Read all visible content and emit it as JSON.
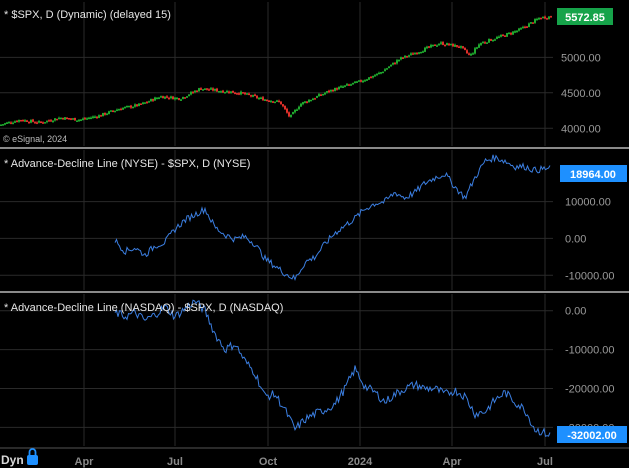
{
  "colors": {
    "background": "#000000",
    "grid": "#2a2a2a",
    "separator": "#8a8a8a",
    "up_candle": "#1faa2e",
    "down_candle": "#e0302a",
    "adl_line": "#3b7ee0",
    "price_badge": "#16a34a",
    "adl_badge": "#1e90ff"
  },
  "footer": {
    "mode_label": "Dyn",
    "lock_icon": "lock-icon"
  },
  "chart_data": [
    {
      "type": "candlestick",
      "title": "* $SPX, D (Dynamic) (delayed 15)",
      "watermark": "© eSignal, 2024",
      "y_ticks": [
        "5000.00",
        "4500.00",
        "4000.00"
      ],
      "tick_values": [
        5000,
        4500,
        4000
      ],
      "ylim": [
        3750,
        5780
      ],
      "last_value_label": "5572.85",
      "last_value": 5572.85,
      "x": [
        0,
        20,
        40,
        60,
        80,
        100,
        120,
        140,
        160,
        180,
        200,
        220,
        240,
        260,
        280,
        290,
        300,
        330,
        360,
        380,
        400,
        420,
        440,
        460,
        470,
        480,
        500,
        520,
        540,
        550
      ],
      "values": [
        4050,
        4120,
        4080,
        4150,
        4120,
        4180,
        4280,
        4330,
        4450,
        4420,
        4560,
        4530,
        4500,
        4420,
        4370,
        4150,
        4340,
        4530,
        4660,
        4780,
        4980,
        5090,
        5200,
        5150,
        5020,
        5200,
        5290,
        5390,
        5560,
        5572.85
      ]
    },
    {
      "type": "line",
      "title": "* Advance-Decline Line (NYSE) - $SPX, D (NYSE)",
      "y_ticks": [
        "10000.00",
        "0.00",
        "-10000.00"
      ],
      "tick_values": [
        10000,
        0,
        -10000
      ],
      "ylim": [
        -14000,
        24000
      ],
      "last_value_label": "18964.00",
      "last_value": 18964,
      "x": [
        115,
        125,
        135,
        145,
        155,
        165,
        175,
        185,
        195,
        205,
        215,
        225,
        235,
        245,
        255,
        265,
        275,
        285,
        295,
        305,
        315,
        325,
        335,
        345,
        355,
        365,
        375,
        385,
        395,
        405,
        415,
        425,
        435,
        445,
        455,
        465,
        475,
        485,
        495,
        505,
        515,
        525,
        535,
        545,
        550
      ],
      "values": [
        -500,
        -3500,
        -2500,
        -4500,
        -2000,
        -1000,
        2500,
        5000,
        6500,
        8000,
        3000,
        1000,
        -200,
        500,
        -1500,
        -5500,
        -7500,
        -9500,
        -11000,
        -6500,
        -5000,
        -1500,
        1500,
        3500,
        5500,
        8000,
        9500,
        10000,
        12500,
        11000,
        12500,
        15000,
        16500,
        17500,
        14000,
        11000,
        16500,
        21000,
        22000,
        21000,
        19500,
        19500,
        18500,
        18900,
        18964
      ]
    },
    {
      "type": "line",
      "title": "* Advance-Decline Line (NASDAQ) - $SPX, D (NASDAQ)",
      "y_ticks": [
        "0.00",
        "-10000.00",
        "-20000.00",
        "-30000.00"
      ],
      "tick_values": [
        0,
        -10000,
        -20000,
        -30000
      ],
      "ylim": [
        -34800,
        4300
      ],
      "last_value_label": "-32002.00",
      "last_value": -32002,
      "x": [
        115,
        125,
        135,
        145,
        155,
        165,
        175,
        185,
        195,
        205,
        215,
        225,
        235,
        245,
        255,
        265,
        275,
        285,
        295,
        305,
        315,
        325,
        335,
        345,
        355,
        365,
        375,
        385,
        395,
        405,
        415,
        425,
        435,
        445,
        455,
        465,
        475,
        485,
        495,
        505,
        515,
        525,
        535,
        545,
        550
      ],
      "values": [
        -500,
        -1500,
        -500,
        -2500,
        -1000,
        1000,
        -1500,
        500,
        2500,
        0,
        -6000,
        -10000,
        -8500,
        -13000,
        -16000,
        -22000,
        -21500,
        -25500,
        -30500,
        -28000,
        -26500,
        -25500,
        -24000,
        -20000,
        -15000,
        -19500,
        -21000,
        -23500,
        -21500,
        -20000,
        -19000,
        -20000,
        -20000,
        -21500,
        -20500,
        -22000,
        -26500,
        -26000,
        -23000,
        -21000,
        -23500,
        -25500,
        -30500,
        -31500,
        -32002
      ]
    }
  ],
  "x_axis": {
    "labels": [
      "Apr",
      "Jul",
      "Oct",
      "2024",
      "Apr",
      "Jul"
    ],
    "label_x": [
      84,
      175,
      268,
      360,
      452,
      545
    ]
  }
}
